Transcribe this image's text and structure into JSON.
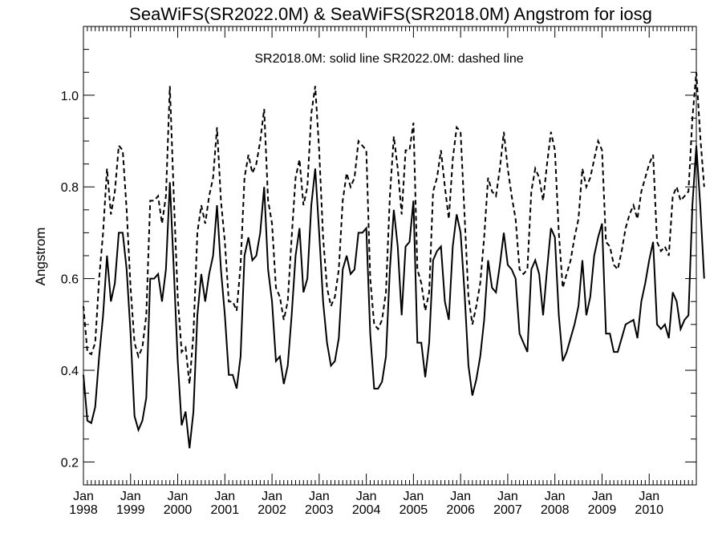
{
  "chart_data": {
    "type": "line",
    "title": "SeaWiFS(SR2022.0M) & SeaWiFS(SR2018.0M)  Angstrom for iosg",
    "legend_text": "SR2018.0M: solid line   SR2022.0M: dashed line",
    "ylabel": "Angstrom",
    "xlabel": "",
    "ylim": [
      0.15,
      1.15
    ],
    "yticks": [
      0.2,
      0.4,
      0.6,
      0.8,
      1.0
    ],
    "ytick_labels": [
      "0.2",
      "0.4",
      "0.6",
      "0.8",
      "1.0"
    ],
    "xlim": [
      "1998-01",
      "2011-01"
    ],
    "xtick_labels": [
      {
        "month": "Jan",
        "year": "1998"
      },
      {
        "month": "Jan",
        "year": "1999"
      },
      {
        "month": "Jan",
        "year": "2000"
      },
      {
        "month": "Jan",
        "year": "2001"
      },
      {
        "month": "Jan",
        "year": "2002"
      },
      {
        "month": "Jan",
        "year": "2003"
      },
      {
        "month": "Jan",
        "year": "2004"
      },
      {
        "month": "Jan",
        "year": "2005"
      },
      {
        "month": "Jan",
        "year": "2006"
      },
      {
        "month": "Jan",
        "year": "2007"
      },
      {
        "month": "Jan",
        "year": "2008"
      },
      {
        "month": "Jan",
        "year": "2009"
      },
      {
        "month": "Jan",
        "year": "2010"
      }
    ],
    "grid": false,
    "start_month": "1998-01",
    "series": [
      {
        "name": "SR2018.0M",
        "style": "solid",
        "values": [
          0.39,
          0.29,
          0.285,
          0.32,
          0.43,
          0.52,
          0.65,
          0.55,
          0.59,
          0.7,
          0.7,
          0.62,
          0.48,
          0.3,
          0.27,
          0.29,
          0.34,
          0.6,
          0.6,
          0.61,
          0.55,
          0.62,
          0.81,
          0.62,
          0.42,
          0.28,
          0.31,
          0.23,
          0.31,
          0.52,
          0.61,
          0.55,
          0.61,
          0.65,
          0.76,
          0.62,
          0.52,
          0.39,
          0.39,
          0.36,
          0.43,
          0.65,
          0.69,
          0.64,
          0.65,
          0.7,
          0.8,
          0.62,
          0.55,
          0.42,
          0.43,
          0.37,
          0.41,
          0.52,
          0.65,
          0.71,
          0.57,
          0.6,
          0.76,
          0.84,
          0.7,
          0.55,
          0.46,
          0.41,
          0.42,
          0.47,
          0.62,
          0.65,
          0.61,
          0.62,
          0.7,
          0.7,
          0.71,
          0.48,
          0.36,
          0.36,
          0.375,
          0.43,
          0.62,
          0.75,
          0.67,
          0.52,
          0.67,
          0.68,
          0.77,
          0.46,
          0.46,
          0.385,
          0.46,
          0.64,
          0.66,
          0.67,
          0.55,
          0.51,
          0.67,
          0.74,
          0.7,
          0.57,
          0.41,
          0.345,
          0.38,
          0.43,
          0.51,
          0.64,
          0.58,
          0.57,
          0.63,
          0.7,
          0.63,
          0.62,
          0.6,
          0.48,
          0.46,
          0.44,
          0.62,
          0.64,
          0.61,
          0.52,
          0.62,
          0.71,
          0.69,
          0.52,
          0.42,
          0.44,
          0.47,
          0.5,
          0.54,
          0.64,
          0.52,
          0.56,
          0.65,
          0.69,
          0.72,
          0.48,
          0.48,
          0.44,
          0.44,
          0.47,
          0.5,
          0.505,
          0.51,
          0.47,
          0.55,
          0.59,
          0.64,
          0.68,
          0.5,
          0.49,
          0.5,
          0.47,
          0.57,
          0.55,
          0.49,
          0.51,
          0.52,
          0.76,
          0.89,
          0.76,
          0.6
        ]
      },
      {
        "name": "SR2022.0M",
        "style": "dashed",
        "values": [
          0.54,
          0.44,
          0.435,
          0.46,
          0.6,
          0.7,
          0.84,
          0.74,
          0.79,
          0.89,
          0.88,
          0.75,
          0.58,
          0.46,
          0.43,
          0.45,
          0.52,
          0.77,
          0.77,
          0.78,
          0.72,
          0.78,
          1.02,
          0.78,
          0.56,
          0.44,
          0.45,
          0.37,
          0.48,
          0.7,
          0.76,
          0.72,
          0.78,
          0.82,
          0.93,
          0.77,
          0.68,
          0.55,
          0.55,
          0.53,
          0.63,
          0.82,
          0.87,
          0.83,
          0.85,
          0.9,
          0.97,
          0.77,
          0.72,
          0.58,
          0.56,
          0.51,
          0.55,
          0.69,
          0.82,
          0.86,
          0.76,
          0.8,
          0.96,
          1.02,
          0.88,
          0.69,
          0.58,
          0.54,
          0.56,
          0.62,
          0.77,
          0.83,
          0.8,
          0.82,
          0.9,
          0.89,
          0.88,
          0.6,
          0.5,
          0.49,
          0.51,
          0.57,
          0.78,
          0.91,
          0.84,
          0.74,
          0.88,
          0.88,
          0.94,
          0.62,
          0.59,
          0.53,
          0.57,
          0.79,
          0.82,
          0.88,
          0.8,
          0.73,
          0.86,
          0.93,
          0.92,
          0.74,
          0.56,
          0.5,
          0.54,
          0.59,
          0.69,
          0.82,
          0.79,
          0.78,
          0.84,
          0.92,
          0.84,
          0.78,
          0.73,
          0.62,
          0.61,
          0.62,
          0.79,
          0.84,
          0.82,
          0.77,
          0.85,
          0.92,
          0.88,
          0.7,
          0.58,
          0.61,
          0.64,
          0.69,
          0.73,
          0.84,
          0.8,
          0.82,
          0.86,
          0.9,
          0.88,
          0.68,
          0.67,
          0.63,
          0.62,
          0.66,
          0.71,
          0.74,
          0.76,
          0.73,
          0.79,
          0.82,
          0.85,
          0.87,
          0.68,
          0.66,
          0.67,
          0.65,
          0.78,
          0.8,
          0.77,
          0.78,
          0.79,
          0.95,
          1.05,
          0.91,
          0.8
        ]
      }
    ]
  }
}
